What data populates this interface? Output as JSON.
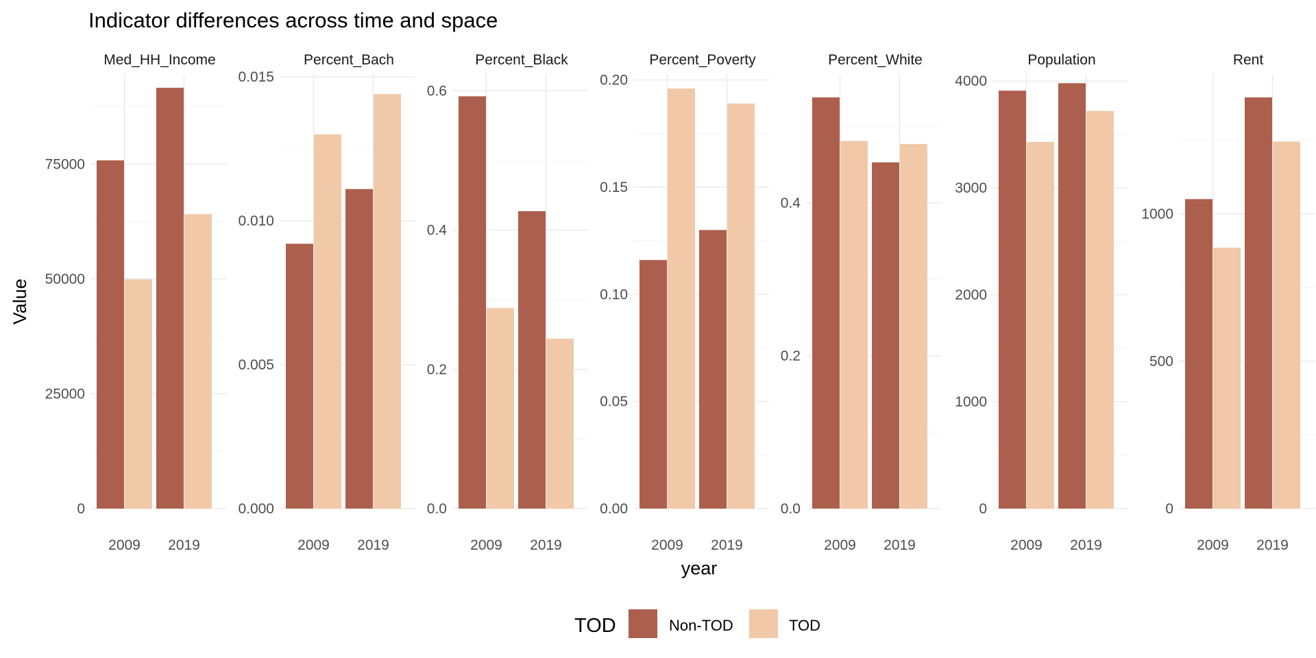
{
  "chart_data": {
    "type": "bar",
    "title": "Indicator differences across time and space",
    "xlabel": "year",
    "ylabel": "Value",
    "categories": [
      "2009",
      "2019"
    ],
    "legend": {
      "title": "TOD",
      "position": "bottom",
      "entries": [
        "Non-TOD",
        "TOD"
      ]
    },
    "colors": {
      "Non-TOD": "#ad5f4e",
      "TOD": "#f1c9a9"
    },
    "grid": true,
    "panels": [
      {
        "name": "Med_HH_Income",
        "ylim": [
          0,
          94000
        ],
        "yticks": [
          0,
          25000,
          50000,
          75000
        ],
        "ytick_labels": [
          "0",
          "25000",
          "50000",
          "75000"
        ],
        "series": [
          {
            "name": "Non-TOD",
            "values": [
              75800,
              91600
            ]
          },
          {
            "name": "TOD",
            "values": [
              49900,
              64100
            ]
          }
        ]
      },
      {
        "name": "Percent_Bach",
        "ylim": [
          0,
          0.015
        ],
        "yticks": [
          0,
          0.005,
          0.01,
          0.015
        ],
        "ytick_labels": [
          "0.000",
          "0.005",
          "0.010",
          "0.015"
        ],
        "series": [
          {
            "name": "Non-TOD",
            "values": [
              0.0092,
              0.0111
            ]
          },
          {
            "name": "TOD",
            "values": [
              0.013,
              0.0144
            ]
          }
        ]
      },
      {
        "name": "Percent_Black",
        "ylim": [
          0,
          0.62
        ],
        "yticks": [
          0,
          0.2,
          0.4,
          0.6
        ],
        "ytick_labels": [
          "0.0",
          "0.2",
          "0.4",
          "0.6"
        ],
        "series": [
          {
            "name": "Non-TOD",
            "values": [
              0.592,
              0.427
            ]
          },
          {
            "name": "TOD",
            "values": [
              0.288,
              0.244
            ]
          }
        ]
      },
      {
        "name": "Percent_Poverty",
        "ylim": [
          0,
          0.2015
        ],
        "yticks": [
          0,
          0.05,
          0.1,
          0.15,
          0.2
        ],
        "ytick_labels": [
          "0.00",
          "0.05",
          "0.10",
          "0.15",
          "0.20"
        ],
        "series": [
          {
            "name": "Non-TOD",
            "values": [
              0.116,
              0.13
            ]
          },
          {
            "name": "TOD",
            "values": [
              0.196,
              0.189
            ]
          }
        ]
      },
      {
        "name": "Percent_White",
        "ylim": [
          0,
          0.565
        ],
        "yticks": [
          0,
          0.2,
          0.4
        ],
        "ytick_labels": [
          "0.0",
          "0.2",
          "0.4"
        ],
        "series": [
          {
            "name": "Non-TOD",
            "values": [
              0.538,
              0.453
            ]
          },
          {
            "name": "TOD",
            "values": [
              0.481,
              0.477
            ]
          }
        ]
      },
      {
        "name": "Population",
        "ylim": [
          0,
          4040
        ],
        "yticks": [
          0,
          1000,
          2000,
          3000,
          4000
        ],
        "ytick_labels": [
          "0",
          "1000",
          "2000",
          "3000",
          "4000"
        ],
        "series": [
          {
            "name": "Non-TOD",
            "values": [
              3910,
              3980
            ]
          },
          {
            "name": "TOD",
            "values": [
              3430,
              3720
            ]
          }
        ]
      },
      {
        "name": "Rent",
        "ylim": [
          0,
          1465
        ],
        "yticks": [
          0,
          500,
          1000
        ],
        "ytick_labels": [
          "0",
          "500",
          "1000"
        ],
        "series": [
          {
            "name": "Non-TOD",
            "values": [
              1050,
              1395
            ]
          },
          {
            "name": "TOD",
            "values": [
              885,
              1245
            ]
          }
        ]
      }
    ]
  }
}
